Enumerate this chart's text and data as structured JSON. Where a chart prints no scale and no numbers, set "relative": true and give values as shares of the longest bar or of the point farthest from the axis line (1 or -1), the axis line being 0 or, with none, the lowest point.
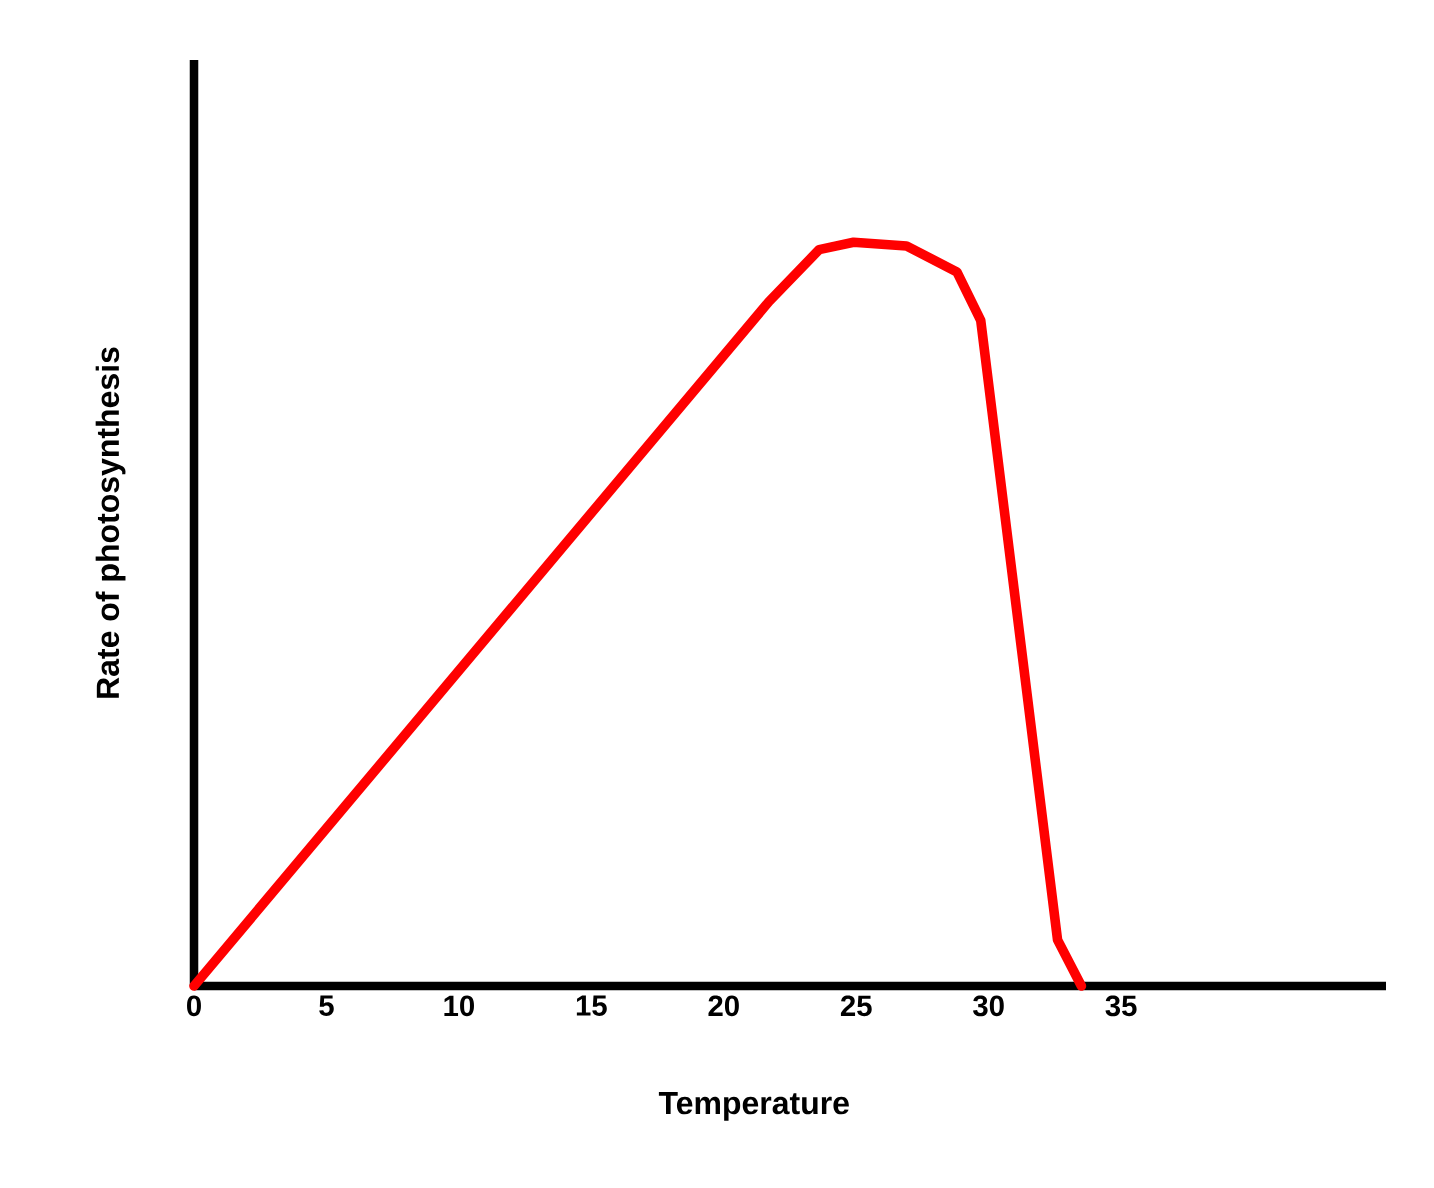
{
  "chart_data": {
    "type": "line",
    "xlabel": "Temperature",
    "ylabel": "Rate of photosynthesis",
    "relative": true,
    "tick_labels": "x",
    "x": [
      0,
      21.7,
      23.6,
      24.9,
      26.9,
      28.8,
      29.7,
      32.6,
      33.5
    ],
    "values": [
      0,
      0.92,
      0.99,
      1.0,
      0.995,
      0.96,
      0.895,
      0.062,
      0.0
    ],
    "color": "#ff0000",
    "xlim": [
      0,
      45
    ],
    "xticks": [
      0,
      5,
      10,
      15,
      20,
      25,
      30,
      35
    ]
  }
}
